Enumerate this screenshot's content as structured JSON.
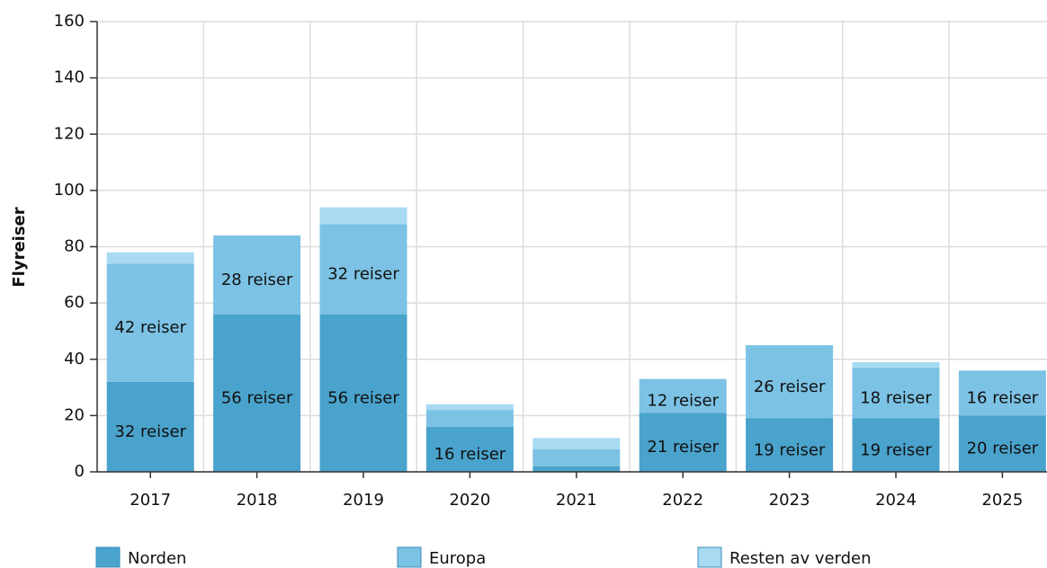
{
  "chart_data": {
    "type": "stacked_bar",
    "y_label": "Flyreiser",
    "categories": [
      "2017",
      "2018",
      "2019",
      "2020",
      "2021",
      "2022",
      "2023",
      "2024",
      "2025"
    ],
    "series": [
      {
        "name": "Norden",
        "color": "#4aa3cc",
        "values": [
          32,
          56,
          56,
          16,
          2,
          21,
          19,
          19,
          20
        ],
        "value_labels": [
          "32 reiser",
          "56 reiser",
          "56 reiser",
          "16 reiser",
          null,
          "21 reiser",
          "19 reiser",
          "19 reiser",
          "20 reiser"
        ]
      },
      {
        "name": "Europa",
        "color": "#7cc2e4",
        "values": [
          42,
          28,
          32,
          6,
          6,
          12,
          26,
          18,
          16
        ],
        "value_labels": [
          "42 reiser",
          "28 reiser",
          "32 reiser",
          null,
          null,
          "12 reiser",
          "26 reiser",
          "18 reiser",
          "16 reiser"
        ]
      },
      {
        "name": "Resten av verden",
        "color": "#a8daf2",
        "values": [
          4,
          0,
          6,
          2,
          4,
          0,
          0,
          2,
          0
        ]
      }
    ],
    "ylim": [
      0,
      160
    ],
    "yticks": [
      0,
      20,
      40,
      60,
      80,
      100,
      120,
      140,
      160
    ],
    "grid": true
  }
}
